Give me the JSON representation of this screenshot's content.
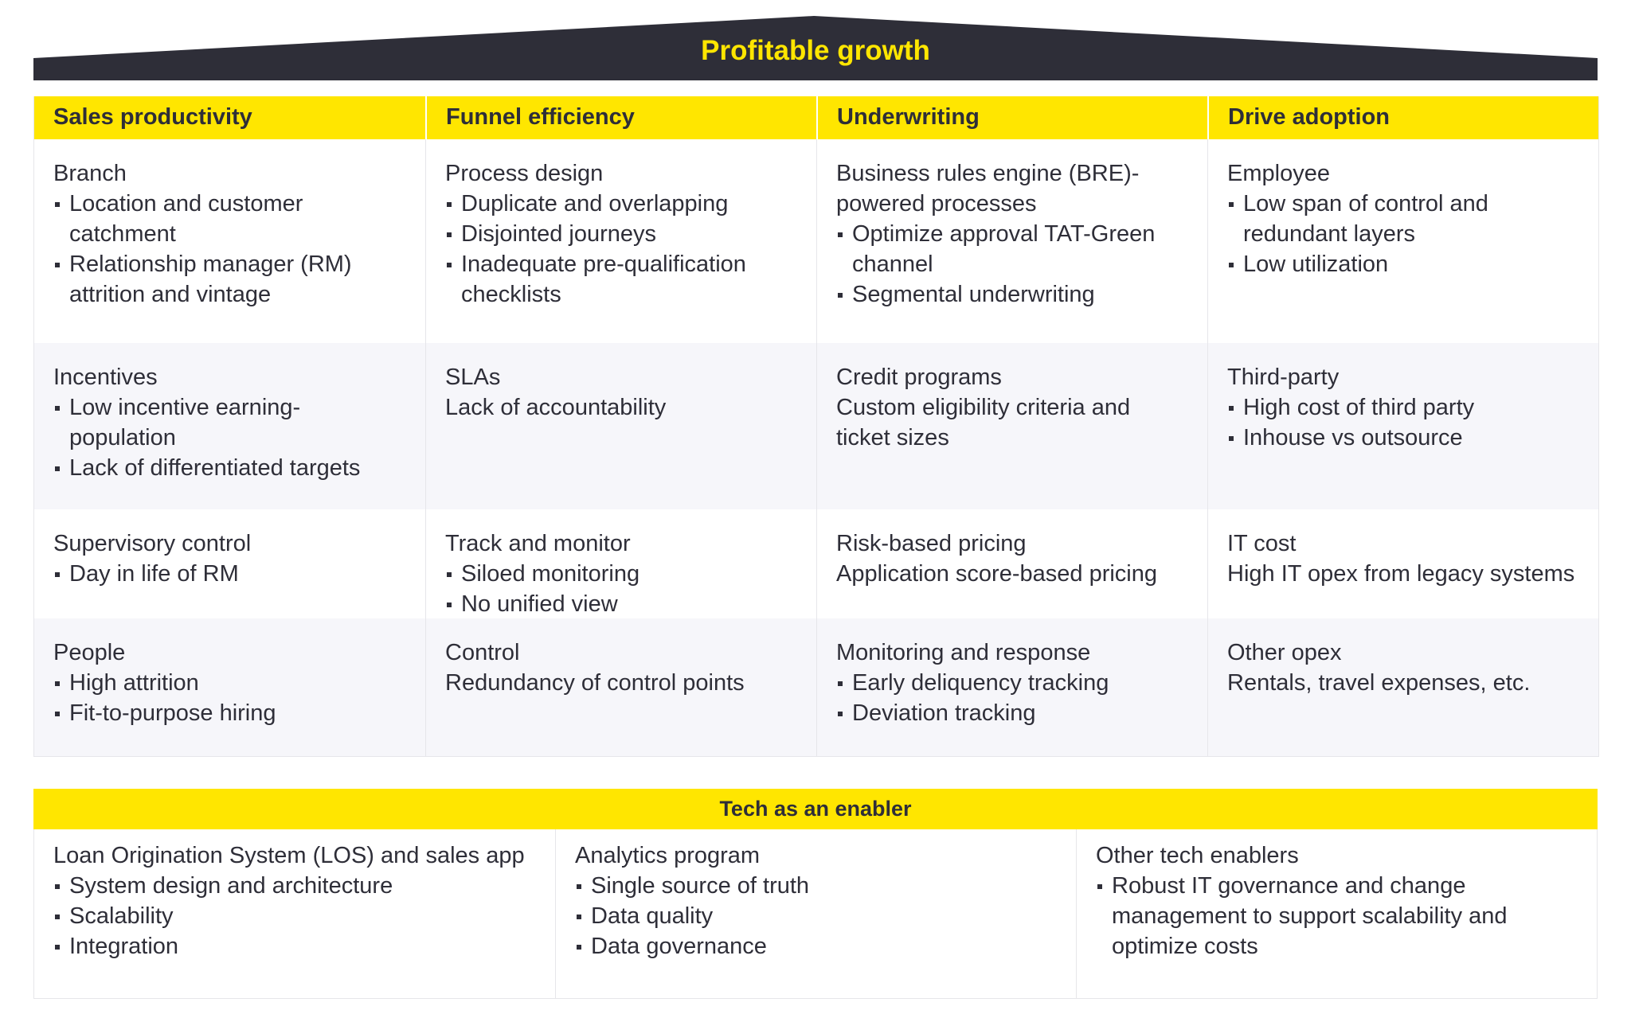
{
  "header": {
    "title": "Profitable growth"
  },
  "columns": [
    {
      "label": "Sales productivity"
    },
    {
      "label": "Funnel efficiency"
    },
    {
      "label": "Underwriting"
    },
    {
      "label": "Drive adoption"
    }
  ],
  "rows": [
    [
      {
        "title": "Branch",
        "bullets": [
          "Location and customer catchment",
          "Relationship manager (RM) attrition and vintage"
        ]
      },
      {
        "title": "Process design",
        "bullets": [
          "Duplicate and overlapping",
          "Disjointed journeys",
          "Inadequate pre-qualification checklists"
        ]
      },
      {
        "title": "Business rules engine (BRE)-powered processes",
        "bullets": [
          "Optimize approval TAT-Green channel",
          "Segmental underwriting"
        ]
      },
      {
        "title": "Employee",
        "bullets": [
          "Low span of control and redundant layers",
          "Low utilization"
        ]
      }
    ],
    [
      {
        "title": "Incentives",
        "bullets": [
          "Low incentive earning-population",
          "Lack of differentiated targets"
        ]
      },
      {
        "title": "SLAs",
        "text": "Lack of accountability"
      },
      {
        "title": "Credit programs",
        "text": "Custom eligibility criteria and ticket sizes"
      },
      {
        "title": "Third-party",
        "bullets": [
          "High cost of third party",
          "Inhouse vs outsource"
        ]
      }
    ],
    [
      {
        "title": "Supervisory control",
        "bullets": [
          "Day in life of RM"
        ]
      },
      {
        "title": "Track and monitor",
        "bullets": [
          "Siloed monitoring",
          "No unified view"
        ]
      },
      {
        "title": "Risk-based pricing",
        "text": "Application score-based pricing"
      },
      {
        "title": "IT cost",
        "text": "High IT opex from legacy systems"
      }
    ],
    [
      {
        "title": "People",
        "bullets": [
          "High attrition",
          "Fit-to-purpose hiring"
        ]
      },
      {
        "title": "Control",
        "text": "Redundancy of control points"
      },
      {
        "title": "Monitoring and response",
        "bullets": [
          "Early deliquency tracking",
          "Deviation tracking"
        ]
      },
      {
        "title": "Other opex",
        "text": "Rentals, travel expenses, etc."
      }
    ]
  ],
  "tech": {
    "title": "Tech as an enabler",
    "columns": [
      {
        "title": "Loan Origination System (LOS) and sales app",
        "bullets": [
          "System design and architecture",
          "Scalability",
          "Integration"
        ]
      },
      {
        "title": "Analytics program",
        "bullets": [
          "Single source of truth",
          "Data quality",
          "Data governance"
        ]
      },
      {
        "title": "Other tech enablers",
        "bullets": [
          "Robust IT governance and change management to support scalability and optimize costs"
        ]
      }
    ]
  },
  "colors": {
    "accent": "#ffe600",
    "dark": "#2e2e38",
    "band": "#f6f6fa"
  }
}
